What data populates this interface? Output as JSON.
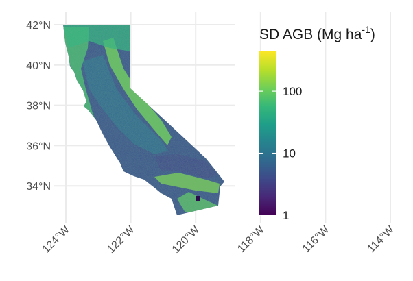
{
  "axes": {
    "lat_ticks": [
      {
        "value": 42,
        "label": "42°N"
      },
      {
        "value": 40,
        "label": "40°N"
      },
      {
        "value": 38,
        "label": "38°N"
      },
      {
        "value": 36,
        "label": "36°N"
      },
      {
        "value": 34,
        "label": "34°N"
      }
    ],
    "lon_ticks": [
      {
        "value": -124,
        "label": "124°W"
      },
      {
        "value": -122,
        "label": "122°W"
      },
      {
        "value": -120,
        "label": "120°W"
      },
      {
        "value": -118,
        "label": "118°W"
      },
      {
        "value": -116,
        "label": "116°W"
      },
      {
        "value": -114,
        "label": "114°W"
      }
    ],
    "grid": true,
    "lon_range": [
      -124.6,
      -113.9
    ],
    "lat_range": [
      32.5,
      42.0
    ]
  },
  "legend": {
    "title_main": "SD AGB (Mg ha",
    "title_sup": "-1",
    "title_end": ")",
    "scale": "log10",
    "placement": "right",
    "breaks": [
      {
        "value": 1,
        "label": "1"
      },
      {
        "value": 10,
        "label": "10"
      },
      {
        "value": 100,
        "label": "100"
      }
    ],
    "range": [
      1,
      450
    ],
    "palette": "viridis",
    "colors": [
      "#440154",
      "#482878",
      "#3e4989",
      "#31688e",
      "#26828e",
      "#1f9e89",
      "#35b779",
      "#6ece58",
      "#b5de2b",
      "#fde725"
    ]
  },
  "map": {
    "region": "California",
    "region_color_low": "#3b528b",
    "region_color_mid": "#21918c",
    "region_color_high": "#7ad151"
  }
}
